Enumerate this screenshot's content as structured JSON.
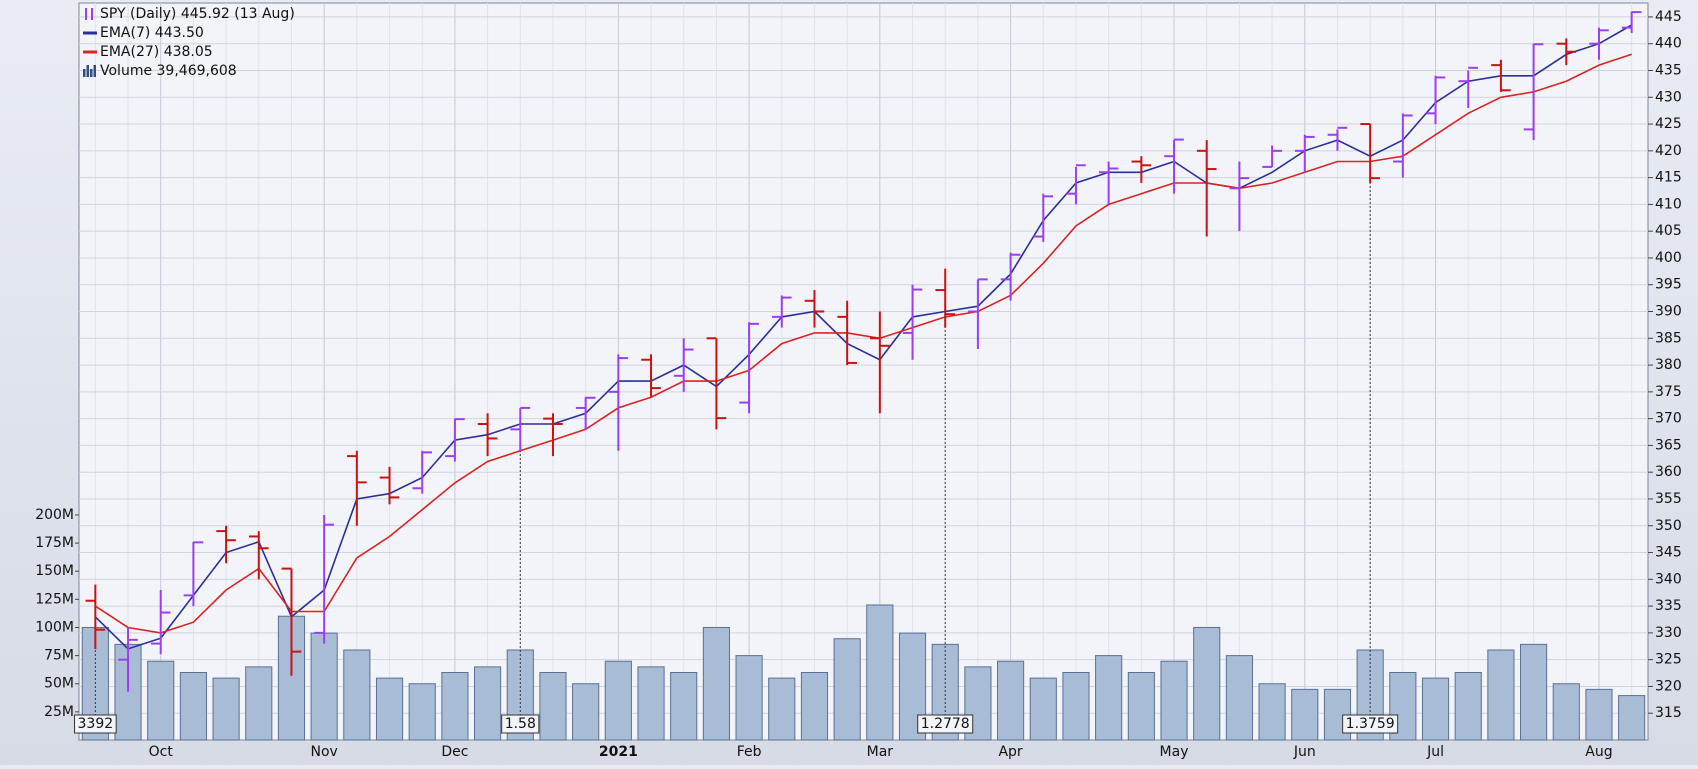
{
  "chart_data": {
    "type": "ohlc",
    "categories": [
      null,
      null,
      "Oct",
      null,
      null,
      null,
      null,
      "Nov",
      null,
      null,
      null,
      "Dec",
      null,
      null,
      null,
      null,
      "2021",
      null,
      null,
      null,
      "Feb",
      null,
      null,
      null,
      "Mar",
      null,
      null,
      null,
      "Apr",
      null,
      null,
      null,
      null,
      "May",
      null,
      null,
      null,
      "Jun",
      null,
      null,
      null,
      "Jul",
      null,
      null,
      null,
      null,
      "Aug",
      null
    ],
    "series": [
      {
        "name": "SPY (Daily) 445.92 (13 Aug)",
        "type": "ohlc",
        "up_color": "#9b3ef0",
        "down_color": "#cc1111",
        "open": [
          336,
          325,
          328,
          337,
          349,
          348,
          342,
          330,
          363,
          359,
          357,
          363,
          369,
          368,
          370,
          372,
          375,
          381,
          378,
          385,
          373,
          389,
          392,
          389,
          385,
          386,
          394,
          390,
          396,
          404,
          412,
          416,
          418,
          419,
          420,
          413,
          417,
          420,
          423,
          425,
          418,
          427,
          433,
          436,
          424,
          440,
          440,
          443
        ],
        "high": [
          339,
          331,
          338,
          347,
          350,
          349,
          342,
          352,
          364,
          361,
          364,
          370,
          371,
          372,
          371,
          374,
          382,
          382,
          385,
          385,
          388,
          393,
          394,
          392,
          390,
          395,
          398,
          396,
          401,
          412,
          417,
          418,
          419,
          422,
          422,
          418,
          421,
          423,
          424,
          425,
          427,
          434,
          435,
          437,
          440,
          441,
          443,
          446
        ],
        "low": [
          327,
          319,
          326,
          335,
          343,
          340,
          322,
          328,
          350,
          354,
          356,
          362,
          363,
          364,
          363,
          368,
          364,
          374,
          375,
          368,
          371,
          387,
          387,
          380,
          371,
          381,
          387,
          383,
          392,
          403,
          410,
          410,
          414,
          412,
          404,
          405,
          417,
          416,
          420,
          414,
          415,
          425,
          428,
          431,
          422,
          436,
          437,
          442
        ],
        "close": [
          330.6,
          328.7,
          333.8,
          346.9,
          347.3,
          345.8,
          326.5,
          350.2,
          358.1,
          355.3,
          363.7,
          369.9,
          366.3,
          372.0,
          369.0,
          373.9,
          381.3,
          375.7,
          382.9,
          370.1,
          387.7,
          392.6,
          390.0,
          380.4,
          383.6,
          394.1,
          389.5,
          396.0,
          400.6,
          411.5,
          417.3,
          416.7,
          417.3,
          422.1,
          416.6,
          414.9,
          420.0,
          422.6,
          424.3,
          414.9,
          426.6,
          433.7,
          435.5,
          431.3,
          439.9,
          438.5,
          442.5,
          445.9
        ]
      },
      {
        "name": "EMA(7) 443.50",
        "type": "line",
        "color": "#2b2f99",
        "values": [
          333,
          327,
          329,
          337,
          345,
          347,
          333,
          338,
          355,
          356,
          359,
          366,
          367,
          369,
          369,
          371,
          377,
          377,
          380,
          376,
          382,
          389,
          390,
          384,
          381,
          389,
          390,
          391,
          397,
          407,
          414,
          416,
          416,
          418,
          414,
          413,
          416,
          420,
          422,
          419,
          422,
          429,
          433,
          434,
          434,
          438,
          440,
          443.5
        ]
      },
      {
        "name": "EMA(27) 438.05",
        "type": "line",
        "color": "#dd2222",
        "values": [
          335,
          331,
          330,
          332,
          338,
          342,
          334,
          334,
          344,
          348,
          353,
          358,
          362,
          364,
          366,
          368,
          372,
          374,
          377,
          377,
          379,
          384,
          386,
          386,
          385,
          387,
          389,
          390,
          393,
          399,
          406,
          410,
          412,
          414,
          414,
          413,
          414,
          416,
          418,
          418,
          419,
          423,
          427,
          430,
          431,
          433,
          436,
          438.05
        ]
      },
      {
        "name": "Volume 39,469,608",
        "type": "bar",
        "axis": "y2",
        "color": "#a9bcd6",
        "edge_color": "#5a6f94",
        "values": [
          100000000,
          85000000,
          70000000,
          60000000,
          55000000,
          65000000,
          110000000,
          95000000,
          80000000,
          55000000,
          50000000,
          60000000,
          65000000,
          80000000,
          60000000,
          50000000,
          70000000,
          65000000,
          60000000,
          100000000,
          75000000,
          55000000,
          60000000,
          90000000,
          120000000,
          95000000,
          85000000,
          65000000,
          70000000,
          55000000,
          60000000,
          75000000,
          60000000,
          70000000,
          100000000,
          75000000,
          50000000,
          45000000,
          45000000,
          80000000,
          60000000,
          55000000,
          60000000,
          80000000,
          85000000,
          50000000,
          45000000,
          39469608
        ]
      }
    ],
    "event_labels": [
      "3392",
      null,
      null,
      null,
      null,
      null,
      null,
      null,
      null,
      null,
      null,
      null,
      null,
      "1.58",
      null,
      null,
      null,
      null,
      null,
      null,
      null,
      null,
      null,
      null,
      null,
      null,
      "1.2778",
      null,
      null,
      null,
      null,
      null,
      null,
      null,
      null,
      null,
      null,
      null,
      null,
      "1.3759",
      null,
      null,
      null,
      null,
      null,
      null,
      null,
      null
    ],
    "ylim": [
      310,
      447.6
    ],
    "yticks": [
      315,
      320,
      325,
      330,
      335,
      340,
      345,
      350,
      355,
      360,
      365,
      370,
      375,
      380,
      385,
      390,
      395,
      400,
      405,
      410,
      415,
      420,
      425,
      430,
      435,
      440,
      445
    ],
    "y2lim": [
      0,
      655000000
    ],
    "y2ticks": [
      {
        "value": 25000000,
        "label": "25M"
      },
      {
        "value": 50000000,
        "label": "50M"
      },
      {
        "value": 75000000,
        "label": "75M"
      },
      {
        "value": 100000000,
        "label": "100M"
      },
      {
        "value": 125000000,
        "label": "125M"
      },
      {
        "value": 150000000,
        "label": "150M"
      },
      {
        "value": 175000000,
        "label": "175M"
      },
      {
        "value": 200000000,
        "label": "200M"
      }
    ],
    "grid": true
  }
}
